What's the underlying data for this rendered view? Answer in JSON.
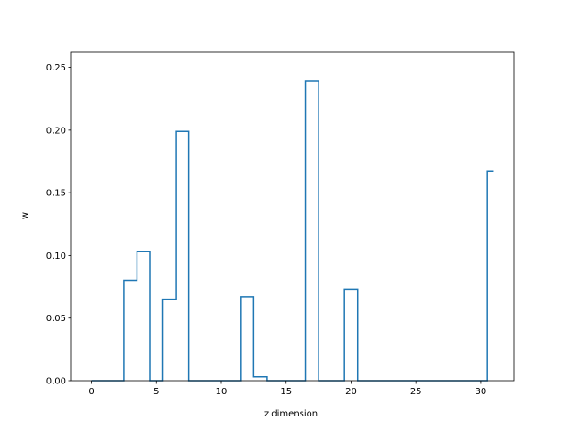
{
  "chart_data": {
    "type": "line",
    "drawstyle": "steps-mid",
    "title": "",
    "xlabel": "z dimension",
    "ylabel": "w",
    "xlim": [
      -1.55,
      32.55
    ],
    "ylim": [
      0,
      0.2625
    ],
    "xticks": [
      0,
      5,
      10,
      15,
      20,
      25,
      30
    ],
    "xtick_labels": [
      "0",
      "5",
      "10",
      "15",
      "20",
      "25",
      "30"
    ],
    "yticks": [
      0,
      0.05,
      0.1,
      0.15,
      0.2,
      0.25
    ],
    "ytick_labels": [
      "0.00",
      "0.05",
      "0.10",
      "0.15",
      "0.20",
      "0.25"
    ],
    "grid": false,
    "legend": "none",
    "series": [
      {
        "color": "#1f77b4",
        "x": [
          0,
          1,
          2,
          3,
          4,
          5,
          6,
          7,
          8,
          9,
          10,
          11,
          12,
          13,
          14,
          15,
          16,
          17,
          18,
          19,
          20,
          21,
          22,
          23,
          24,
          25,
          26,
          27,
          28,
          29,
          30,
          31
        ],
        "y": [
          0,
          0,
          0,
          0.08,
          0.103,
          0,
          0.065,
          0.199,
          0,
          0,
          0,
          0,
          0.067,
          0.003,
          0,
          0,
          0,
          0.239,
          0,
          0,
          0.073,
          0,
          0,
          0,
          0,
          0,
          0,
          0,
          0,
          0,
          0,
          0.167
        ]
      }
    ]
  }
}
